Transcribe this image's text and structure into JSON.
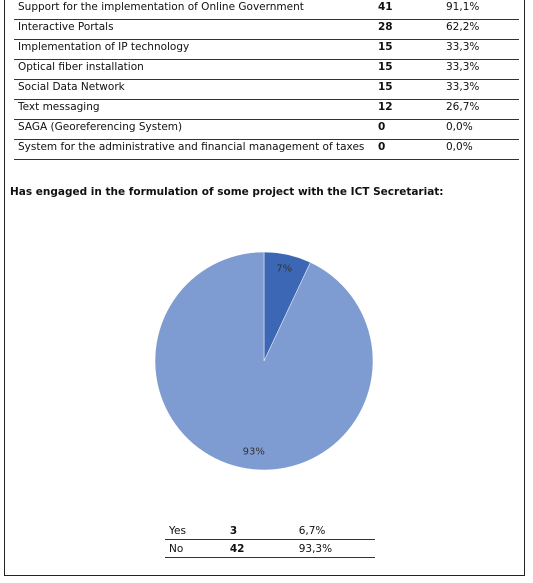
{
  "table": {
    "rows": [
      [
        "Support for the implementation of Online Government",
        "41",
        "91,1%"
      ],
      [
        "Interactive Portals",
        "28",
        "62,2%"
      ],
      [
        "Implementation of IP technology",
        "15",
        "33,3%"
      ],
      [
        "Optical fiber installation",
        "15",
        "33,3%"
      ],
      [
        "Social Data Network",
        "15",
        "33,3%"
      ],
      [
        "Text messaging",
        "12",
        "26,7%"
      ],
      [
        "SAGA (Georeferencing System)",
        "0",
        "0,0%"
      ],
      [
        "System for the administrative and financial management of taxes",
        "0",
        "0,0%"
      ]
    ]
  },
  "heading": "Has engaged in the formulation of some project with the ICT Secretariat:",
  "chart_data": {
    "type": "pie",
    "values": [
      7,
      93
    ],
    "value_labels": [
      "7%",
      "93%"
    ],
    "colors": [
      "#3c67b4",
      "#7f9cd2"
    ]
  },
  "summary": {
    "rows": [
      [
        "Yes",
        "3",
        "6,7%"
      ],
      [
        "No",
        "42",
        "93,3%"
      ]
    ]
  }
}
